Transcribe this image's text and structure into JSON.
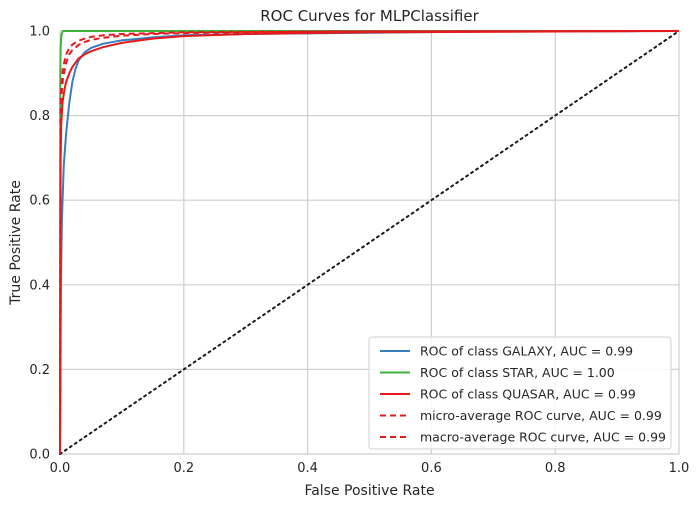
{
  "chart_data": {
    "type": "line",
    "title": "ROC Curves for MLPClassifier",
    "xlabel": "False Positive Rate",
    "ylabel": "True Positive Rate",
    "xlim": [
      0,
      1
    ],
    "ylim": [
      0,
      1
    ],
    "x_ticks": [
      "0.0",
      "0.2",
      "0.4",
      "0.6",
      "0.8",
      "1.0"
    ],
    "y_ticks": [
      "0.0",
      "0.2",
      "0.4",
      "0.6",
      "0.8",
      "1.0"
    ],
    "grid": true,
    "legend_position": "lower-right",
    "series": [
      {
        "name": "ROC of class GALAXY, AUC = 0.99",
        "color": "#3a7dbf",
        "style": "solid",
        "x": [
          0,
          0.0015,
          0.003,
          0.006,
          0.01,
          0.015,
          0.02,
          0.025,
          0.03,
          0.04,
          0.05,
          0.07,
          0.1,
          0.15,
          0.2,
          0.3,
          0.5,
          0.7,
          1.0
        ],
        "y": [
          0,
          0.4,
          0.55,
          0.68,
          0.76,
          0.83,
          0.88,
          0.91,
          0.93,
          0.95,
          0.96,
          0.97,
          0.978,
          0.985,
          0.99,
          0.993,
          0.996,
          0.999,
          1.0
        ]
      },
      {
        "name": "ROC of class STAR, AUC = 1.00",
        "color": "#3bb33b",
        "style": "solid",
        "x": [
          0,
          0.0005,
          0.001,
          0.002,
          0.003,
          0.005,
          0.01,
          0.05,
          0.2,
          1.0
        ],
        "y": [
          0,
          0.9,
          0.96,
          0.985,
          0.995,
          1.0,
          1.0,
          1.0,
          1.0,
          1.0
        ]
      },
      {
        "name": "ROC of class QUASAR, AUC = 0.99",
        "color": "#e41a1c",
        "style": "solid",
        "x": [
          0,
          0.001,
          0.002,
          0.004,
          0.007,
          0.01,
          0.015,
          0.02,
          0.03,
          0.04,
          0.05,
          0.07,
          0.1,
          0.15,
          0.2,
          0.3,
          0.5,
          1.0
        ],
        "y": [
          0,
          0.7,
          0.78,
          0.83,
          0.86,
          0.88,
          0.9,
          0.915,
          0.935,
          0.945,
          0.952,
          0.962,
          0.972,
          0.982,
          0.988,
          0.993,
          0.997,
          1.0
        ]
      },
      {
        "name": "micro-average ROC curve, AUC = 0.99",
        "color": "#e41a1c",
        "style": "dashed",
        "x": [
          0,
          0.001,
          0.003,
          0.005,
          0.01,
          0.015,
          0.02,
          0.03,
          0.04,
          0.05,
          0.07,
          0.1,
          0.15,
          0.2,
          0.3,
          0.5,
          1.0
        ],
        "y": [
          0,
          0.8,
          0.86,
          0.89,
          0.925,
          0.945,
          0.955,
          0.967,
          0.974,
          0.979,
          0.984,
          0.989,
          0.993,
          0.995,
          0.997,
          0.999,
          1.0
        ]
      },
      {
        "name": "macro-average ROC curve, AUC = 0.99",
        "color": "#e41a1c",
        "style": "dashed",
        "x": [
          0,
          0.001,
          0.003,
          0.005,
          0.01,
          0.015,
          0.02,
          0.03,
          0.04,
          0.05,
          0.07,
          0.1,
          0.15,
          0.2,
          0.3,
          0.5,
          1.0
        ],
        "y": [
          0,
          0.84,
          0.89,
          0.915,
          0.945,
          0.96,
          0.968,
          0.977,
          0.982,
          0.986,
          0.99,
          0.993,
          0.995,
          0.997,
          0.998,
          0.999,
          1.0
        ]
      }
    ],
    "reference_line": {
      "color": "#1a1a1a",
      "style": "dotted",
      "x": [
        0,
        1
      ],
      "y": [
        0,
        1
      ]
    }
  }
}
